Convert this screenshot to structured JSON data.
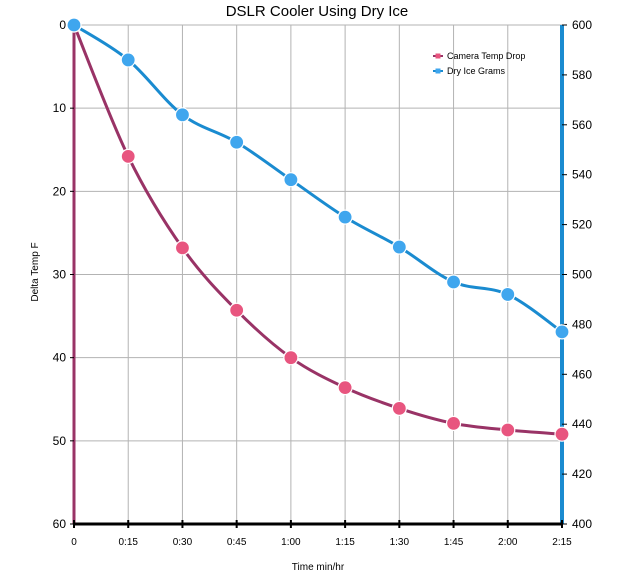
{
  "chart_data": {
    "type": "line",
    "title": "DSLR Cooler Using Dry Ice",
    "xlabel": "Time min/hr",
    "ylabel": "Delta Temp F",
    "y2label": "",
    "categories": [
      "0",
      "0:15",
      "0:30",
      "0:45",
      "1:00",
      "1:15",
      "1:30",
      "1:45",
      "2:00",
      "2:15"
    ],
    "ylim": [
      0,
      60
    ],
    "y_inverted": true,
    "y_ticks": [
      "0",
      "10",
      "20",
      "30",
      "40",
      "50",
      "60"
    ],
    "y2lim": [
      400,
      600
    ],
    "y2_ticks": [
      "400",
      "420",
      "440",
      "460",
      "480",
      "500",
      "520",
      "540",
      "560",
      "580",
      "600"
    ],
    "grid": true,
    "legend_position": "top-right",
    "series": [
      {
        "name": "Camera Temp Drop",
        "axis": "left",
        "color": "#993366",
        "marker_color": "#e8557f",
        "values": [
          0,
          15.8,
          26.8,
          34.3,
          40.0,
          43.6,
          46.1,
          47.9,
          48.7,
          49.2
        ]
      },
      {
        "name": "Dry Ice Grams",
        "axis": "right",
        "color": "#1a8bd0",
        "marker_color": "#3fa6ee",
        "values": [
          600,
          586,
          564,
          553,
          538,
          523,
          511,
          497,
          492,
          477
        ]
      }
    ]
  }
}
